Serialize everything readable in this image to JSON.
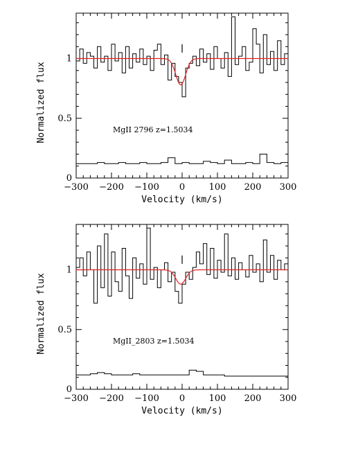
{
  "chart_data": [
    {
      "type": "line",
      "annotation": "MgII 2796  z=1.5034",
      "xlabel": "Velocity  (km/s)",
      "ylabel": "Normalized flux",
      "xlim": [
        -300,
        300
      ],
      "ylim": [
        0,
        1.38
      ],
      "xticks": [
        -300,
        -200,
        -100,
        0,
        100,
        200,
        300
      ],
      "yticks": [
        0,
        0.5,
        1
      ],
      "ytick_labels": [
        "0",
        "0.5",
        "1"
      ],
      "marker_x": 0,
      "series": [
        {
          "style": "step",
          "color": "#000000",
          "x": [
            -300,
            -290,
            -280,
            -270,
            -260,
            -250,
            -240,
            -230,
            -220,
            -210,
            -200,
            -190,
            -180,
            -170,
            -160,
            -150,
            -140,
            -130,
            -120,
            -110,
            -100,
            -90,
            -80,
            -70,
            -60,
            -50,
            -40,
            -30,
            -20,
            -10,
            0,
            10,
            20,
            30,
            40,
            50,
            60,
            70,
            80,
            90,
            100,
            110,
            120,
            130,
            140,
            150,
            160,
            170,
            180,
            190,
            200,
            210,
            220,
            230,
            240,
            250,
            260,
            270,
            280,
            290
          ],
          "y": [
            0.98,
            1.08,
            0.96,
            1.05,
            1.02,
            0.92,
            1.1,
            0.97,
            1.02,
            0.9,
            1.12,
            0.98,
            1.05,
            0.88,
            1.1,
            0.92,
            1.04,
            0.97,
            1.08,
            0.95,
            1.02,
            0.9,
            1.07,
            1.12,
            0.95,
            1.03,
            0.82,
            0.96,
            0.85,
            0.8,
            0.68,
            0.92,
            0.96,
            1.02,
            0.94,
            1.08,
            0.97,
            1.04,
            0.91,
            1.1,
            1.0,
            0.92,
            1.05,
            0.85,
            1.35,
            0.95,
            1.02,
            1.1,
            0.9,
            0.97,
            1.25,
            1.12,
            0.88,
            1.2,
            0.95,
            1.06,
            0.9,
            1.15,
            0.95,
            1.04
          ]
        },
        {
          "style": "step",
          "color": "#000000",
          "x": [
            -300,
            -280,
            -260,
            -240,
            -220,
            -200,
            -180,
            -160,
            -140,
            -120,
            -100,
            -80,
            -60,
            -40,
            -20,
            0,
            20,
            40,
            60,
            80,
            100,
            120,
            140,
            160,
            180,
            200,
            220,
            240,
            260,
            280
          ],
          "y": [
            0.12,
            0.12,
            0.12,
            0.13,
            0.12,
            0.12,
            0.13,
            0.12,
            0.12,
            0.13,
            0.12,
            0.12,
            0.13,
            0.17,
            0.12,
            0.13,
            0.12,
            0.12,
            0.14,
            0.13,
            0.12,
            0.15,
            0.12,
            0.12,
            0.13,
            0.12,
            0.2,
            0.13,
            0.12,
            0.13
          ]
        },
        {
          "style": "line",
          "color": "#e32222",
          "model": {
            "continuum": 1.0,
            "depth": 0.22,
            "center": -4,
            "sigma": 14
          }
        }
      ]
    },
    {
      "type": "line",
      "annotation": "MgII_2803  z=1.5034",
      "xlabel": "Velocity  (km/s)",
      "ylabel": "Normalized flux",
      "xlim": [
        -300,
        300
      ],
      "ylim": [
        0,
        1.38
      ],
      "xticks": [
        -300,
        -200,
        -100,
        0,
        100,
        200,
        300
      ],
      "yticks": [
        0,
        0.5,
        1
      ],
      "ytick_labels": [
        "0",
        "0.5",
        "1"
      ],
      "marker_x": 0,
      "series": [
        {
          "style": "step",
          "color": "#000000",
          "x": [
            -300,
            -290,
            -280,
            -270,
            -260,
            -250,
            -240,
            -230,
            -220,
            -210,
            -200,
            -190,
            -180,
            -170,
            -160,
            -150,
            -140,
            -130,
            -120,
            -110,
            -100,
            -90,
            -80,
            -70,
            -60,
            -50,
            -40,
            -30,
            -20,
            -10,
            0,
            10,
            20,
            30,
            40,
            50,
            60,
            70,
            80,
            90,
            100,
            110,
            120,
            130,
            140,
            150,
            160,
            170,
            180,
            190,
            200,
            210,
            220,
            230,
            240,
            250,
            260,
            270,
            280,
            290
          ],
          "y": [
            1.02,
            1.1,
            0.95,
            1.15,
            1.0,
            0.72,
            1.2,
            0.85,
            1.3,
            0.78,
            1.15,
            0.9,
            0.82,
            1.18,
            0.95,
            0.76,
            1.1,
            0.93,
            1.05,
            0.88,
            1.35,
            0.92,
            1.02,
            0.85,
            1.0,
            1.06,
            0.9,
            0.98,
            0.82,
            0.72,
            0.88,
            0.98,
            0.92,
            1.02,
            1.15,
            1.05,
            1.22,
            0.96,
            1.18,
            0.93,
            1.08,
            0.98,
            1.3,
            0.95,
            1.1,
            0.92,
            1.06,
            1.0,
            0.94,
            1.12,
            0.98,
            1.05,
            0.9,
            1.25,
            0.98,
            1.12,
            0.92,
            1.08,
            1.0,
            1.05
          ]
        },
        {
          "style": "step",
          "color": "#000000",
          "x": [
            -300,
            -280,
            -260,
            -240,
            -220,
            -200,
            -180,
            -160,
            -140,
            -120,
            -100,
            -80,
            -60,
            -40,
            -20,
            0,
            20,
            40,
            60,
            80,
            100,
            120,
            140,
            160,
            180,
            200,
            220,
            240,
            260,
            280
          ],
          "y": [
            0.12,
            0.12,
            0.13,
            0.14,
            0.13,
            0.12,
            0.12,
            0.12,
            0.13,
            0.12,
            0.12,
            0.12,
            0.12,
            0.12,
            0.12,
            0.12,
            0.16,
            0.15,
            0.12,
            0.12,
            0.12,
            0.11,
            0.11,
            0.11,
            0.11,
            0.11,
            0.11,
            0.11,
            0.11,
            0.11
          ]
        },
        {
          "style": "line",
          "color": "#e32222",
          "model": {
            "continuum": 1.0,
            "depth": 0.12,
            "center": -4,
            "sigma": 14
          }
        }
      ]
    }
  ]
}
